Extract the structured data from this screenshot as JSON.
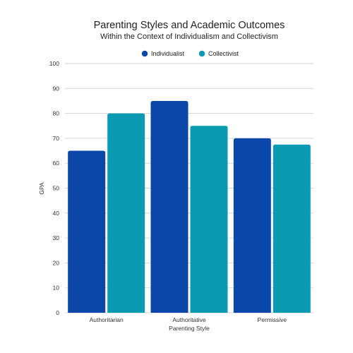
{
  "chart_data": {
    "type": "bar",
    "title": "Parenting Styles and Academic Outcomes",
    "subtitle": "Within the Context of Individualism and Collectivism",
    "xlabel": "Parenting Style",
    "ylabel": "GPA",
    "categories": [
      "Authoritarian",
      "Authoritative",
      "Permissive"
    ],
    "series": [
      {
        "name": "Individualist",
        "color": "#0a47a9",
        "values": [
          65,
          85,
          70
        ]
      },
      {
        "name": "Collectivist",
        "color": "#0a9bb3",
        "values": [
          80,
          75,
          67.5
        ]
      }
    ],
    "ylim": [
      0,
      100
    ],
    "yticks": [
      0,
      10,
      20,
      30,
      40,
      50,
      60,
      70,
      80,
      90,
      100
    ],
    "grid": true,
    "legend_position": "top-center"
  }
}
